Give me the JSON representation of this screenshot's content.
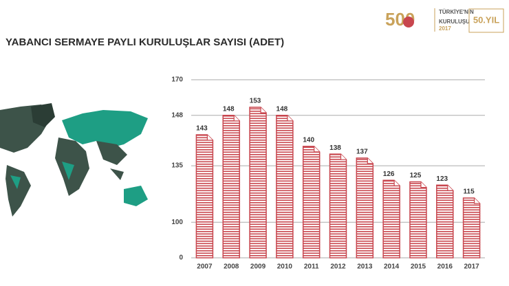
{
  "title": "YABANCI SERMAYE PAYLI KURULUŞLAR SAYISI (ADET)",
  "logo": {
    "number": "500",
    "line1": "TÜRKİYE'NİN",
    "line2": "KURULUŞU",
    "year": "2017",
    "badge": "50.YIL"
  },
  "chart_data": {
    "type": "bar",
    "categories": [
      "2007",
      "2008",
      "2009",
      "2010",
      "2011",
      "2012",
      "2013",
      "2014",
      "2015",
      "2016",
      "2017"
    ],
    "values": [
      143,
      148,
      153,
      148,
      140,
      138,
      137,
      126,
      125,
      123,
      115
    ],
    "color": "#c8464e",
    "ylim": [
      0,
      170
    ],
    "yticks": [
      0,
      100,
      135,
      148,
      170
    ],
    "grid": true
  }
}
